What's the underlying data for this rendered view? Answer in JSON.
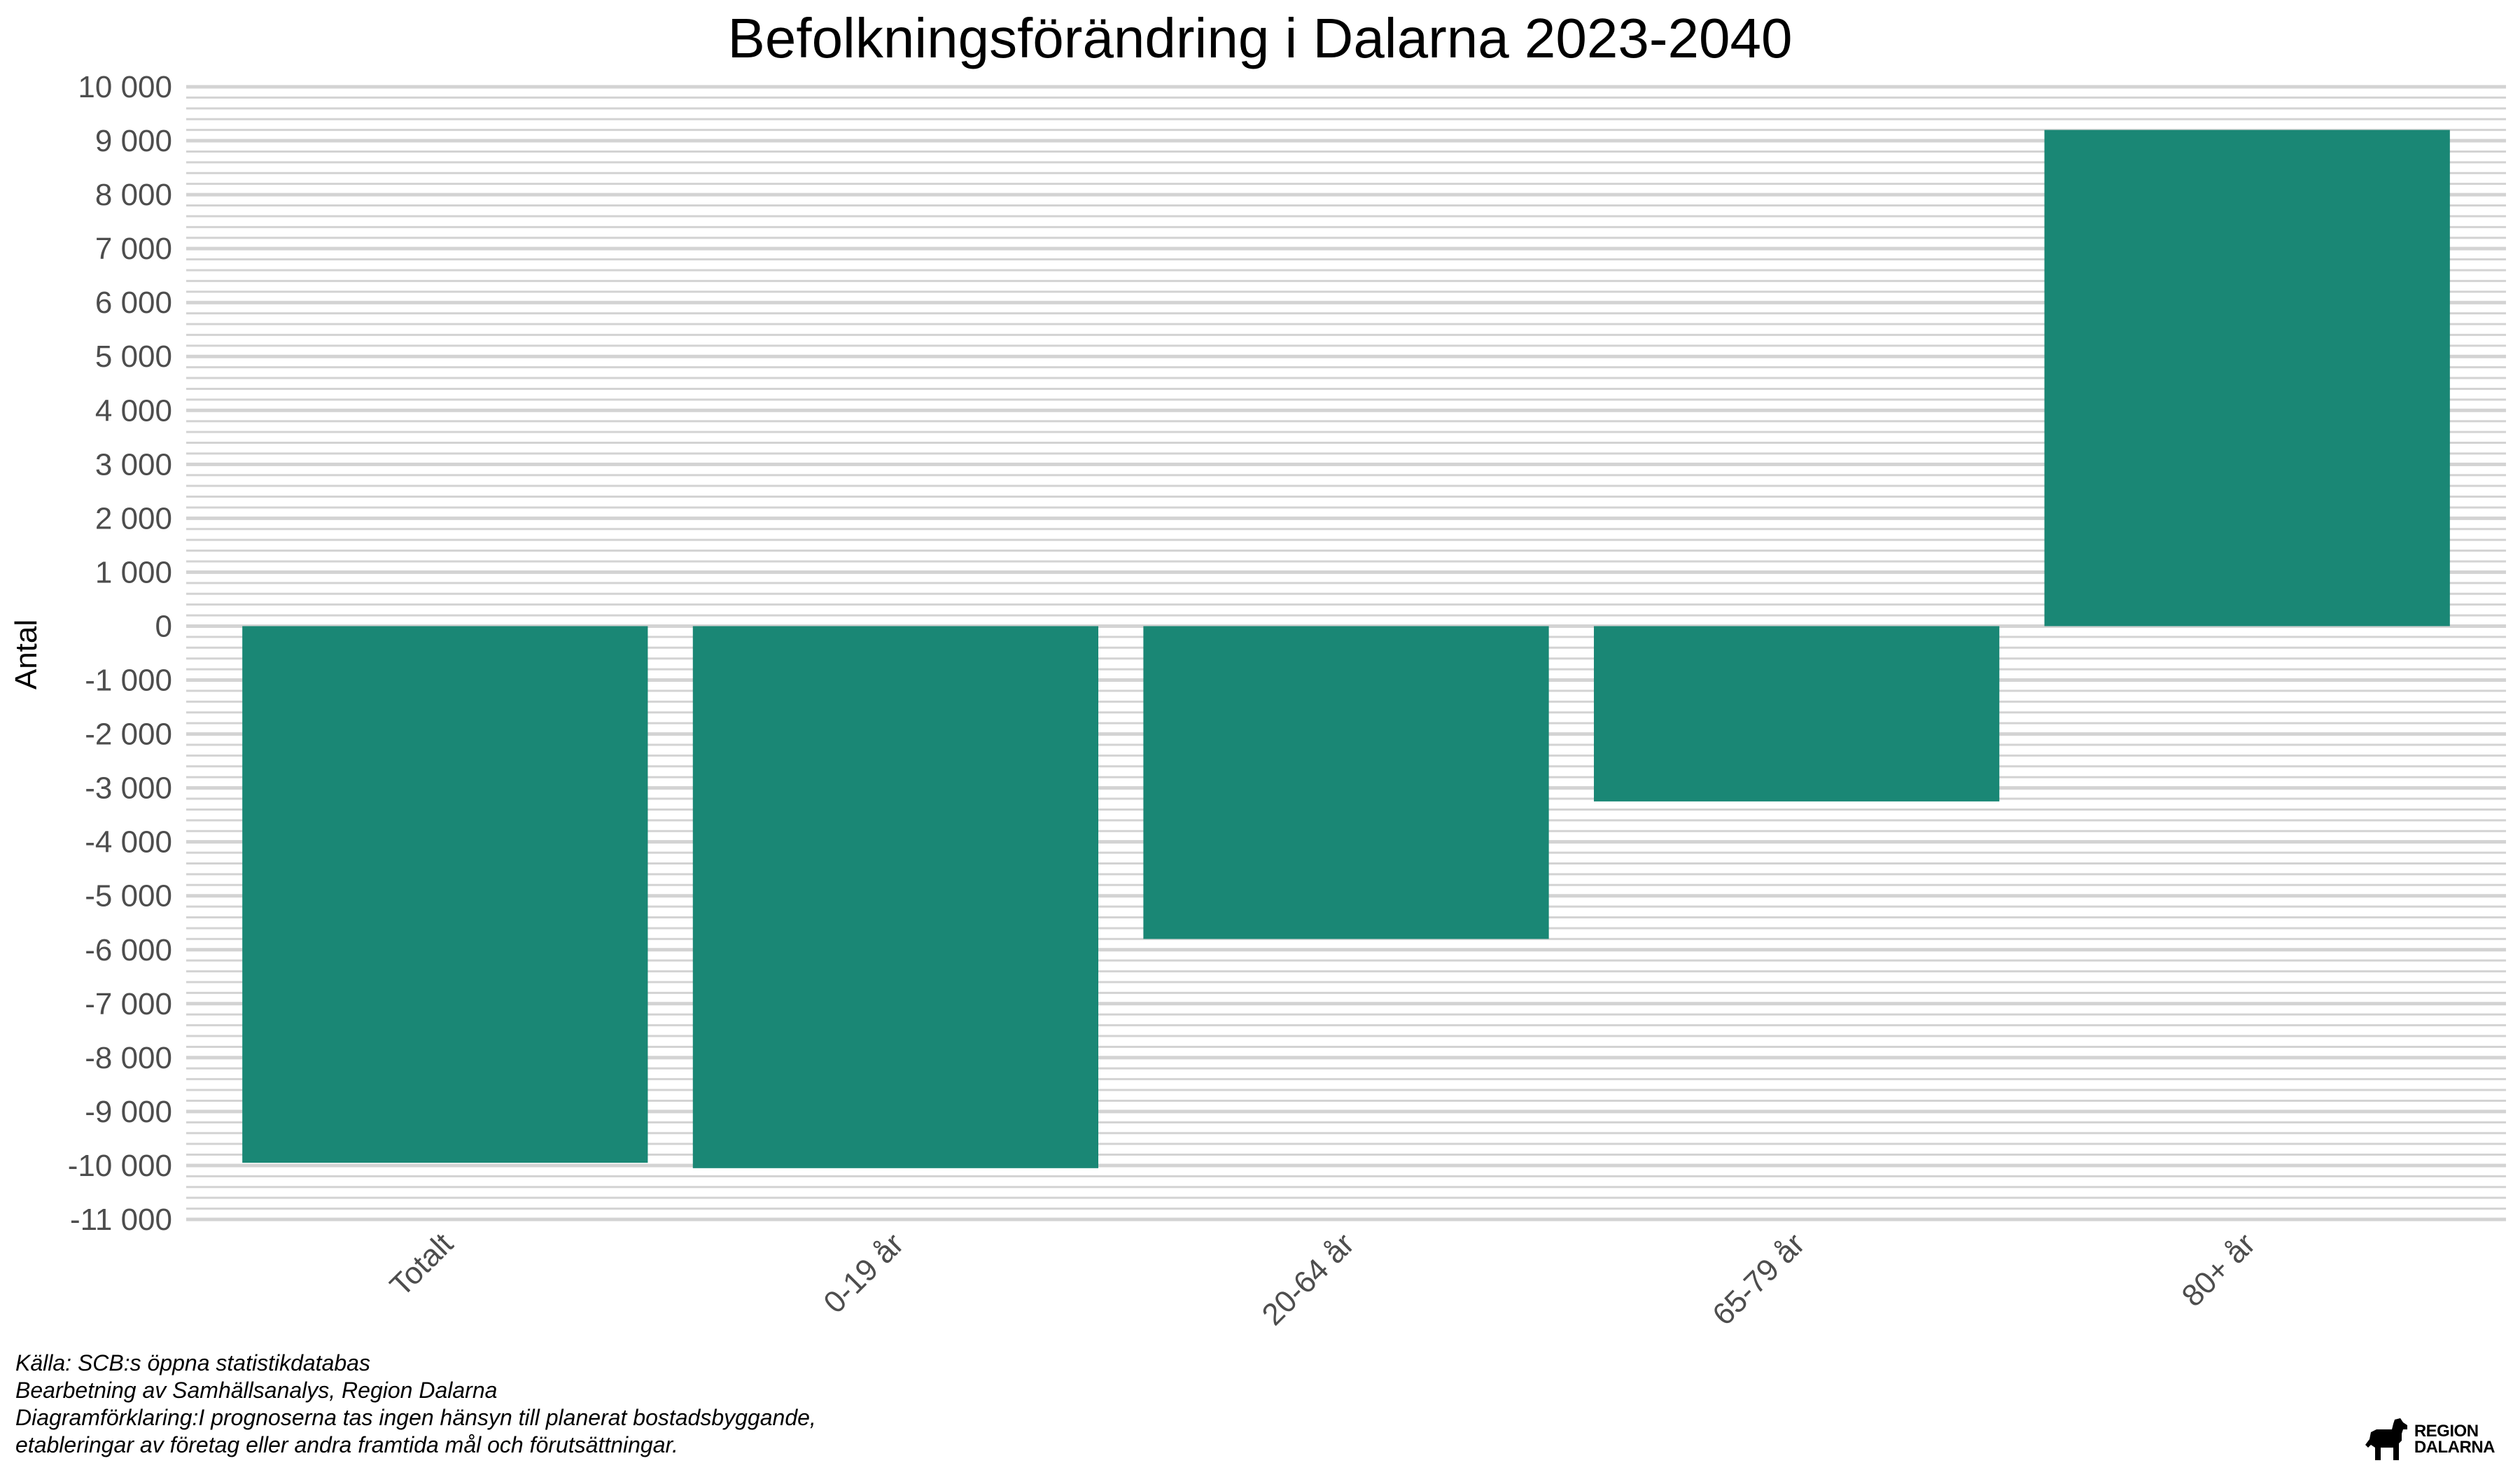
{
  "chart_data": {
    "type": "bar",
    "title": "Befolkningsförändring i Dalarna 2023-2040",
    "ylabel": "Antal",
    "xlabel": "",
    "categories": [
      "Totalt",
      "0-19 år",
      "20-64 år",
      "65-79 år",
      "80+ år"
    ],
    "values": [
      -9950,
      -10050,
      -5800,
      -3250,
      9200
    ],
    "ylim": [
      -11000,
      10000
    ],
    "yticks": [
      10000,
      9000,
      8000,
      7000,
      6000,
      5000,
      4000,
      3000,
      2000,
      1000,
      0,
      -1000,
      -2000,
      -3000,
      -4000,
      -5000,
      -6000,
      -7000,
      -8000,
      -9000,
      -10000,
      -11000
    ],
    "ytick_labels": [
      "10 000",
      "9 000",
      "8 000",
      "7 000",
      "6 000",
      "5 000",
      "4 000",
      "3 000",
      "2 000",
      "1 000",
      "0",
      "-1 000",
      "-2 000",
      "-3 000",
      "-4 000",
      "-5 000",
      "-6 000",
      "-7 000",
      "-8 000",
      "-9 000",
      "-10 000",
      "-11 000"
    ],
    "minor_gridlines_per_major": 4,
    "grid": true,
    "legend": "none",
    "bar_color": "#1a8775",
    "grid_color": "#d3d3d3"
  },
  "caption": {
    "line1": "Källa: SCB:s öppna statistikdatabas",
    "line2": "Bearbetning av Samhällsanalys, Region Dalarna",
    "line3": "Diagramförklaring:I prognoserna tas ingen hänsyn till planerat bostadsbyggande,",
    "line4": "etableringar av företag eller andra framtida mål och förutsättningar."
  },
  "logo": {
    "line1": "REGION",
    "line2": "DALARNA",
    "icon": "dala-horse-icon"
  }
}
